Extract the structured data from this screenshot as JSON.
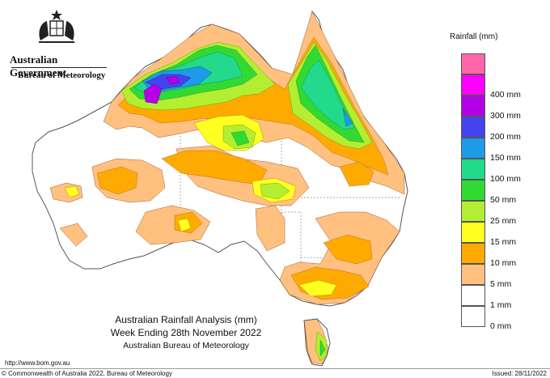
{
  "header": {
    "organisation": "Australian Government",
    "agency": "Bureau of Meteorology"
  },
  "map": {
    "title_line1": "Australian Rainfall Analysis (mm)",
    "title_line2": "Week Ending 28th November 2022",
    "title_line3": "Australian Bureau of Meteorology"
  },
  "legend": {
    "title": "Rainfall (mm)",
    "items": [
      {
        "label": "",
        "color": "#ff66aa"
      },
      {
        "label": "400 mm",
        "color": "#ff00ff"
      },
      {
        "label": "300 mm",
        "color": "#b300e6"
      },
      {
        "label": "200 mm",
        "color": "#4444ee"
      },
      {
        "label": "150 mm",
        "color": "#1e9be6"
      },
      {
        "label": "100 mm",
        "color": "#22d98c"
      },
      {
        "label": "50 mm",
        "color": "#33d933"
      },
      {
        "label": "25 mm",
        "color": "#b3ee33"
      },
      {
        "label": "15 mm",
        "color": "#ffff22"
      },
      {
        "label": "10 mm",
        "color": "#ffaa00"
      },
      {
        "label": "5 mm",
        "color": "#ffc080"
      },
      {
        "label": "1 mm",
        "color": "#ffffff"
      },
      {
        "label": "0 mm",
        "color": "#ffffff"
      }
    ]
  },
  "footer": {
    "url": "http://www.bom.gov.au",
    "copyright": "© Commonwealth of Australia 2022, Bureau of Meteorology",
    "issued": "Issued: 28/11/2022"
  }
}
